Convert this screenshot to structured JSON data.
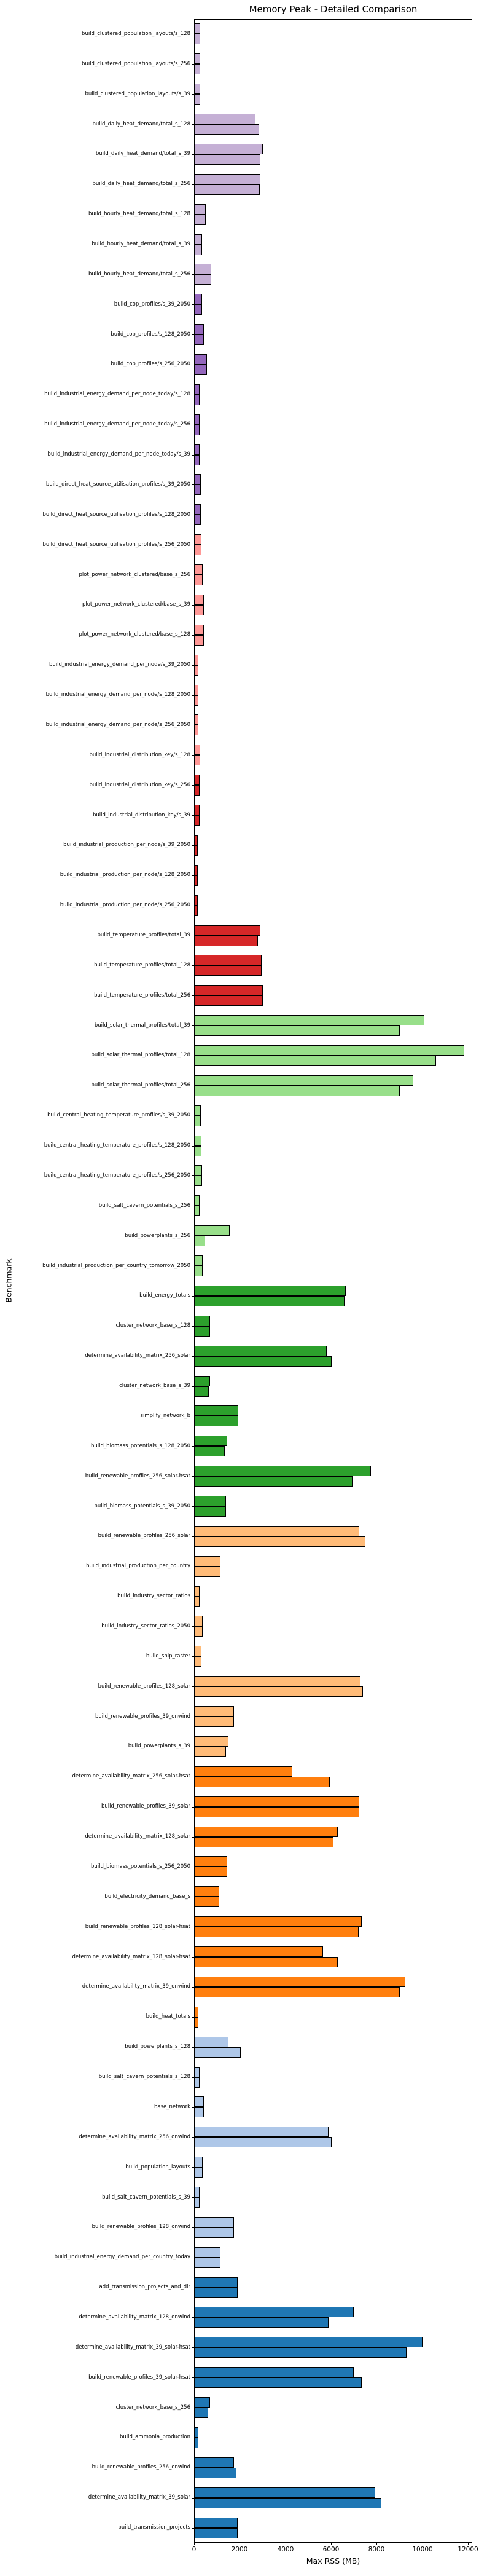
{
  "title": "Memory Peak - Detailed Comparison",
  "chart_data": {
    "type": "bar",
    "orientation": "horizontal",
    "title": "Memory Peak - Detailed Comparison",
    "xlabel": "Max RSS (MB)",
    "ylabel": "Benchmark",
    "xlim": [
      0,
      12000
    ],
    "x_ticks": [
      0,
      2000,
      4000,
      6000,
      8000,
      10000,
      12000
    ],
    "grid": false,
    "legend": "none",
    "bars_per_category": 2,
    "bar_edge_color": "#000000",
    "palette": {
      "light_purple": "#c5b0d5",
      "purple": "#9467bd",
      "salmon": "#ff9896",
      "red": "#d62728",
      "light_green": "#98df8a",
      "green": "#2ca02c",
      "light_orange": "#ffbb78",
      "orange": "#ff7f0e",
      "light_blue": "#aec7e8",
      "blue": "#1f77b4"
    },
    "rows": [
      {
        "label": "build_clustered_population_layouts/s_128",
        "color": "#c5b0d5",
        "values_mb": [
          270,
          270
        ]
      },
      {
        "label": "build_clustered_population_layouts/s_256",
        "color": "#c5b0d5",
        "values_mb": [
          280,
          280
        ]
      },
      {
        "label": "build_clustered_population_layouts/s_39",
        "color": "#c5b0d5",
        "values_mb": [
          280,
          280
        ]
      },
      {
        "label": "build_daily_heat_demand/total_s_128",
        "color": "#c5b0d5",
        "values_mb": [
          2700,
          2850
        ]
      },
      {
        "label": "build_daily_heat_demand/total_s_39",
        "color": "#c5b0d5",
        "values_mb": [
          3000,
          2900
        ]
      },
      {
        "label": "build_daily_heat_demand/total_s_256",
        "color": "#c5b0d5",
        "values_mb": [
          2900,
          2890
        ]
      },
      {
        "label": "build_hourly_heat_demand/total_s_128",
        "color": "#c5b0d5",
        "values_mb": [
          520,
          520
        ]
      },
      {
        "label": "build_hourly_heat_demand/total_s_39",
        "color": "#c5b0d5",
        "values_mb": [
          340,
          340
        ]
      },
      {
        "label": "build_hourly_heat_demand/total_s_256",
        "color": "#c5b0d5",
        "values_mb": [
          750,
          750
        ]
      },
      {
        "label": "build_cop_profiles/s_39_2050",
        "color": "#9467bd",
        "values_mb": [
          340,
          340
        ]
      },
      {
        "label": "build_cop_profiles/s_128_2050",
        "color": "#9467bd",
        "values_mb": [
          420,
          420
        ]
      },
      {
        "label": "build_cop_profiles/s_256_2050",
        "color": "#9467bd",
        "values_mb": [
          560,
          560
        ]
      },
      {
        "label": "build_industrial_energy_demand_per_node_today/s_128",
        "color": "#9467bd",
        "values_mb": [
          230,
          230
        ]
      },
      {
        "label": "build_industrial_energy_demand_per_node_today/s_256",
        "color": "#9467bd",
        "values_mb": [
          230,
          230
        ]
      },
      {
        "label": "build_industrial_energy_demand_per_node_today/s_39",
        "color": "#9467bd",
        "values_mb": [
          230,
          230
        ]
      },
      {
        "label": "build_direct_heat_source_utilisation_profiles/s_39_2050",
        "color": "#9467bd",
        "values_mb": [
          300,
          300
        ]
      },
      {
        "label": "build_direct_heat_source_utilisation_profiles/s_128_2050",
        "color": "#9467bd",
        "values_mb": [
          300,
          300
        ]
      },
      {
        "label": "build_direct_heat_source_utilisation_profiles/s_256_2050",
        "color": "#ff9896",
        "values_mb": [
          320,
          320
        ]
      },
      {
        "label": "plot_power_network_clustered/base_s_256",
        "color": "#ff9896",
        "values_mb": [
          380,
          380
        ]
      },
      {
        "label": "plot_power_network_clustered/base_s_39",
        "color": "#ff9896",
        "values_mb": [
          430,
          430
        ]
      },
      {
        "label": "plot_power_network_clustered/base_s_128",
        "color": "#ff9896",
        "values_mb": [
          430,
          430
        ]
      },
      {
        "label": "build_industrial_energy_demand_per_node/s_39_2050",
        "color": "#ff9896",
        "values_mb": [
          190,
          190
        ]
      },
      {
        "label": "build_industrial_energy_demand_per_node/s_128_2050",
        "color": "#ff9896",
        "values_mb": [
          200,
          200
        ]
      },
      {
        "label": "build_industrial_energy_demand_per_node/s_256_2050",
        "color": "#ff9896",
        "values_mb": [
          200,
          200
        ]
      },
      {
        "label": "build_industrial_distribution_key/s_128",
        "color": "#ff9896",
        "values_mb": [
          270,
          270
        ]
      },
      {
        "label": "build_industrial_distribution_key/s_256",
        "color": "#d62728",
        "values_mb": [
          240,
          240
        ]
      },
      {
        "label": "build_industrial_distribution_key/s_39",
        "color": "#d62728",
        "values_mb": [
          250,
          250
        ]
      },
      {
        "label": "build_industrial_production_per_node/s_39_2050",
        "color": "#d62728",
        "values_mb": [
          160,
          160
        ]
      },
      {
        "label": "build_industrial_production_per_node/s_128_2050",
        "color": "#d62728",
        "values_mb": [
          170,
          170
        ]
      },
      {
        "label": "build_industrial_production_per_node/s_256_2050",
        "color": "#d62728",
        "values_mb": [
          170,
          170
        ]
      },
      {
        "label": "build_temperature_profiles/total_39",
        "color": "#d62728",
        "values_mb": [
          2900,
          2800
        ]
      },
      {
        "label": "build_temperature_profiles/total_128",
        "color": "#d62728",
        "values_mb": [
          2950,
          2950
        ]
      },
      {
        "label": "build_temperature_profiles/total_256",
        "color": "#d62728",
        "values_mb": [
          3000,
          3000
        ]
      },
      {
        "label": "build_solar_thermal_profiles/total_39",
        "color": "#98df8a",
        "values_mb": [
          10100,
          9000
        ]
      },
      {
        "label": "build_solar_thermal_profiles/total_128",
        "color": "#98df8a",
        "values_mb": [
          11850,
          10600
        ]
      },
      {
        "label": "build_solar_thermal_profiles/total_256",
        "color": "#98df8a",
        "values_mb": [
          9600,
          9000
        ]
      },
      {
        "label": "build_central_heating_temperature_profiles/s_39_2050",
        "color": "#98df8a",
        "values_mb": [
          290,
          290
        ]
      },
      {
        "label": "build_central_heating_temperature_profiles/s_128_2050",
        "color": "#98df8a",
        "values_mb": [
          310,
          310
        ]
      },
      {
        "label": "build_central_heating_temperature_profiles/s_256_2050",
        "color": "#98df8a",
        "values_mb": [
          340,
          340
        ]
      },
      {
        "label": "build_salt_cavern_potentials_s_256",
        "color": "#98df8a",
        "values_mb": [
          250,
          250
        ]
      },
      {
        "label": "build_powerplants_s_256",
        "color": "#98df8a",
        "values_mb": [
          1550,
          480
        ]
      },
      {
        "label": "build_industrial_production_per_country_tomorrow_2050",
        "color": "#98df8a",
        "values_mb": [
          390,
          390
        ]
      },
      {
        "label": "build_energy_totals",
        "color": "#2ca02c",
        "values_mb": [
          6650,
          6600
        ]
      },
      {
        "label": "cluster_network_base_s_128",
        "color": "#2ca02c",
        "values_mb": [
          700,
          700
        ]
      },
      {
        "label": "determine_availability_matrix_256_solar",
        "color": "#2ca02c",
        "values_mb": [
          5820,
          6030
        ]
      },
      {
        "label": "cluster_network_base_s_39",
        "color": "#2ca02c",
        "values_mb": [
          700,
          650
        ]
      },
      {
        "label": "simplify_network_b",
        "color": "#2ca02c",
        "values_mb": [
          1950,
          1950
        ]
      },
      {
        "label": "build_biomass_potentials_s_128_2050",
        "color": "#2ca02c",
        "values_mb": [
          1450,
          1350
        ]
      },
      {
        "label": "build_renewable_profiles_256_solar-hsat",
        "color": "#2ca02c",
        "values_mb": [
          7740,
          6940
        ]
      },
      {
        "label": "build_biomass_potentials_s_39_2050",
        "color": "#2ca02c",
        "values_mb": [
          1400,
          1400
        ]
      },
      {
        "label": "build_renewable_profiles_256_solar",
        "color": "#ffbb78",
        "values_mb": [
          7250,
          7500
        ]
      },
      {
        "label": "build_industrial_production_per_country",
        "color": "#ffbb78",
        "values_mb": [
          1150,
          1150
        ]
      },
      {
        "label": "build_industry_sector_ratios",
        "color": "#ffbb78",
        "values_mb": [
          250,
          250
        ]
      },
      {
        "label": "build_industry_sector_ratios_2050",
        "color": "#ffbb78",
        "values_mb": [
          370,
          370
        ]
      },
      {
        "label": "build_ship_raster",
        "color": "#ffbb78",
        "values_mb": [
          310,
          310
        ]
      },
      {
        "label": "build_renewable_profiles_128_solar",
        "color": "#ffbb78",
        "values_mb": [
          7300,
          7400
        ]
      },
      {
        "label": "build_renewable_profiles_39_onwind",
        "color": "#ffbb78",
        "values_mb": [
          1750,
          1750
        ]
      },
      {
        "label": "build_powerplants_s_39",
        "color": "#ffbb78",
        "values_mb": [
          1500,
          1400
        ]
      },
      {
        "label": "determine_availability_matrix_256_solar-hsat",
        "color": "#ff7f0e",
        "values_mb": [
          4300,
          5950
        ]
      },
      {
        "label": "build_renewable_profiles_39_solar",
        "color": "#ff7f0e",
        "values_mb": [
          7250,
          7250
        ]
      },
      {
        "label": "determine_availability_matrix_128_solar",
        "color": "#ff7f0e",
        "values_mb": [
          6300,
          6100
        ]
      },
      {
        "label": "build_biomass_potentials_s_256_2050",
        "color": "#ff7f0e",
        "values_mb": [
          1450,
          1450
        ]
      },
      {
        "label": "build_electricity_demand_base_s",
        "color": "#ff7f0e",
        "values_mb": [
          1100,
          1100
        ]
      },
      {
        "label": "build_renewable_profiles_128_solar-hsat",
        "color": "#ff7f0e",
        "values_mb": [
          7350,
          7200
        ]
      },
      {
        "label": "determine_availability_matrix_128_solar-hsat",
        "color": "#ff7f0e",
        "values_mb": [
          5650,
          6300
        ]
      },
      {
        "label": "determine_availability_matrix_39_onwind",
        "color": "#ff7f0e",
        "values_mb": [
          9250,
          9000
        ]
      },
      {
        "label": "build_heat_totals",
        "color": "#ff7f0e",
        "values_mb": [
          180,
          180
        ]
      },
      {
        "label": "build_powerplants_s_128",
        "color": "#aec7e8",
        "values_mb": [
          1500,
          2050
        ]
      },
      {
        "label": "build_salt_cavern_potentials_s_128",
        "color": "#aec7e8",
        "values_mb": [
          250,
          250
        ]
      },
      {
        "label": "base_network",
        "color": "#aec7e8",
        "values_mb": [
          420,
          420
        ]
      },
      {
        "label": "determine_availability_matrix_256_onwind",
        "color": "#aec7e8",
        "values_mb": [
          5900,
          6030
        ]
      },
      {
        "label": "build_population_layouts",
        "color": "#aec7e8",
        "values_mb": [
          380,
          380
        ]
      },
      {
        "label": "build_salt_cavern_potentials_s_39",
        "color": "#aec7e8",
        "values_mb": [
          250,
          250
        ]
      },
      {
        "label": "build_renewable_profiles_128_onwind",
        "color": "#aec7e8",
        "values_mb": [
          1750,
          1750
        ]
      },
      {
        "label": "build_industrial_energy_demand_per_country_today",
        "color": "#aec7e8",
        "values_mb": [
          1150,
          1150
        ]
      },
      {
        "label": "add_transmission_projects_and_dlr",
        "color": "#1f77b4",
        "values_mb": [
          1900,
          1900
        ]
      },
      {
        "label": "determine_availability_matrix_128_onwind",
        "color": "#1f77b4",
        "values_mb": [
          7000,
          5900
        ]
      },
      {
        "label": "determine_availability_matrix_39_solar-hsat",
        "color": "#1f77b4",
        "values_mb": [
          10000,
          9300
        ]
      },
      {
        "label": "build_renewable_profiles_39_solar-hsat",
        "color": "#1f77b4",
        "values_mb": [
          7000,
          7350
        ]
      },
      {
        "label": "cluster_network_base_s_256",
        "color": "#1f77b4",
        "values_mb": [
          700,
          620
        ]
      },
      {
        "label": "build_ammonia_production",
        "color": "#1f77b4",
        "values_mb": [
          200,
          200
        ]
      },
      {
        "label": "build_renewable_profiles_256_onwind",
        "color": "#1f77b4",
        "values_mb": [
          1750,
          1850
        ]
      },
      {
        "label": "determine_availability_matrix_39_solar",
        "color": "#1f77b4",
        "values_mb": [
          7950,
          8200
        ]
      },
      {
        "label": "build_transmission_projects",
        "color": "#1f77b4",
        "values_mb": [
          1900,
          1900
        ]
      }
    ]
  }
}
